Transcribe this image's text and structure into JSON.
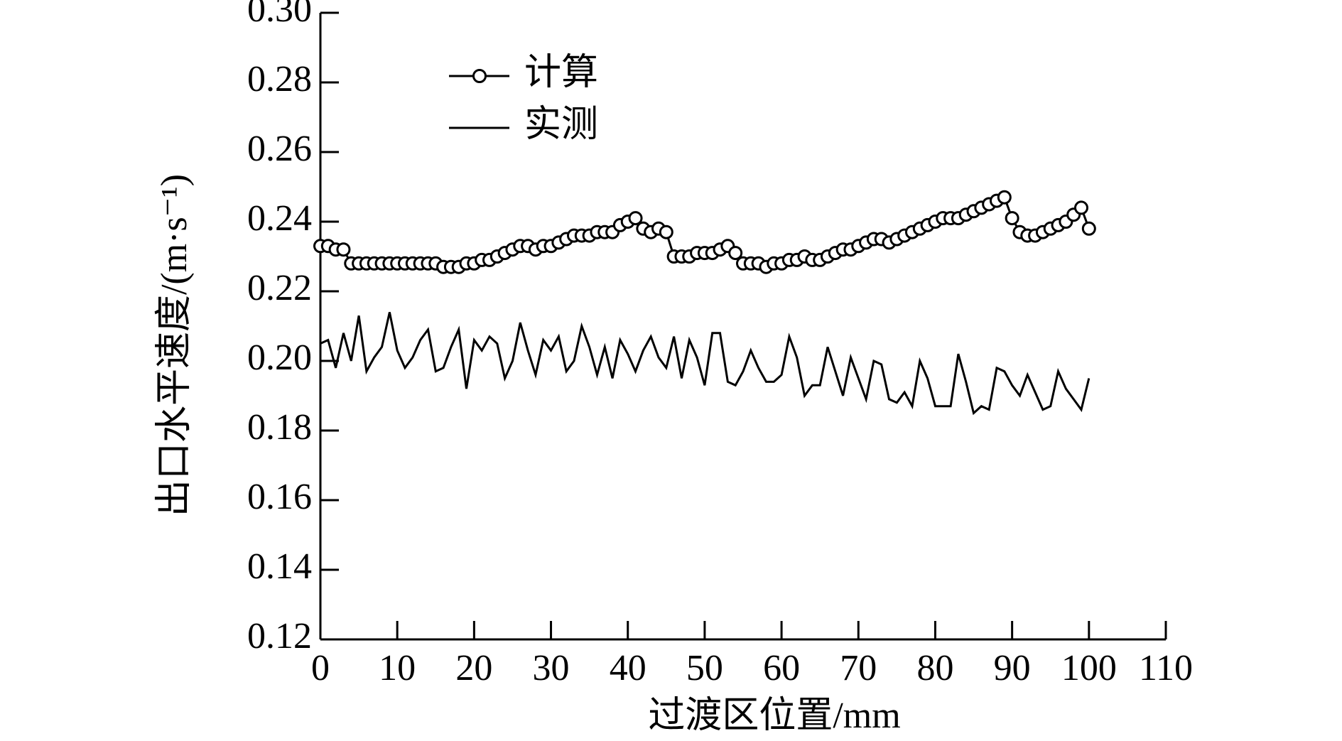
{
  "chart_data": {
    "type": "line",
    "xlabel": "过渡区位置/mm",
    "ylabel": "出口水平速度/(m·s⁻¹)",
    "x": [
      0,
      1,
      2,
      3,
      4,
      5,
      6,
      7,
      8,
      9,
      10,
      11,
      12,
      13,
      14,
      15,
      16,
      17,
      18,
      19,
      20,
      21,
      22,
      23,
      24,
      25,
      26,
      27,
      28,
      29,
      30,
      31,
      32,
      33,
      34,
      35,
      36,
      37,
      38,
      39,
      40,
      41,
      42,
      43,
      44,
      45,
      46,
      47,
      48,
      49,
      50,
      51,
      52,
      53,
      54,
      55,
      56,
      57,
      58,
      59,
      60,
      61,
      62,
      63,
      64,
      65,
      66,
      67,
      68,
      69,
      70,
      71,
      72,
      73,
      74,
      75,
      76,
      77,
      78,
      79,
      80,
      81,
      82,
      83,
      84,
      85,
      86,
      87,
      88,
      89,
      90,
      91,
      92,
      93,
      94,
      95,
      96,
      97,
      98,
      99,
      100
    ],
    "series": [
      {
        "name": "计算",
        "color": "#000000",
        "marker": "circle",
        "values": [
          0.233,
          0.233,
          0.232,
          0.232,
          0.228,
          0.228,
          0.228,
          0.228,
          0.228,
          0.228,
          0.228,
          0.228,
          0.228,
          0.228,
          0.228,
          0.228,
          0.227,
          0.227,
          0.227,
          0.228,
          0.228,
          0.229,
          0.229,
          0.23,
          0.231,
          0.232,
          0.233,
          0.233,
          0.232,
          0.233,
          0.233,
          0.234,
          0.235,
          0.236,
          0.236,
          0.236,
          0.237,
          0.237,
          0.237,
          0.239,
          0.24,
          0.241,
          0.238,
          0.237,
          0.238,
          0.237,
          0.23,
          0.23,
          0.23,
          0.231,
          0.231,
          0.231,
          0.232,
          0.233,
          0.231,
          0.228,
          0.228,
          0.228,
          0.227,
          0.228,
          0.228,
          0.229,
          0.229,
          0.23,
          0.229,
          0.229,
          0.23,
          0.231,
          0.232,
          0.232,
          0.233,
          0.234,
          0.235,
          0.235,
          0.234,
          0.235,
          0.236,
          0.237,
          0.238,
          0.239,
          0.24,
          0.241,
          0.241,
          0.241,
          0.242,
          0.243,
          0.244,
          0.245,
          0.246,
          0.247,
          0.241,
          0.237,
          0.236,
          0.236,
          0.237,
          0.238,
          0.239,
          0.24,
          0.242,
          0.244,
          0.238
        ]
      },
      {
        "name": "实测",
        "color": "#000000",
        "values": [
          0.205,
          0.206,
          0.198,
          0.208,
          0.2,
          0.213,
          0.197,
          0.201,
          0.204,
          0.214,
          0.203,
          0.198,
          0.201,
          0.206,
          0.209,
          0.197,
          0.198,
          0.204,
          0.209,
          0.192,
          0.206,
          0.203,
          0.207,
          0.205,
          0.195,
          0.2,
          0.211,
          0.203,
          0.196,
          0.206,
          0.203,
          0.207,
          0.197,
          0.2,
          0.21,
          0.204,
          0.196,
          0.204,
          0.195,
          0.206,
          0.202,
          0.197,
          0.203,
          0.207,
          0.201,
          0.198,
          0.207,
          0.195,
          0.206,
          0.201,
          0.193,
          0.208,
          0.208,
          0.194,
          0.193,
          0.197,
          0.203,
          0.198,
          0.194,
          0.194,
          0.196,
          0.207,
          0.201,
          0.19,
          0.193,
          0.193,
          0.204,
          0.197,
          0.19,
          0.201,
          0.195,
          0.189,
          0.2,
          0.199,
          0.189,
          0.188,
          0.191,
          0.187,
          0.2,
          0.195,
          0.187,
          0.187,
          0.187,
          0.202,
          0.194,
          0.185,
          0.187,
          0.186,
          0.198,
          0.197,
          0.193,
          0.19,
          0.196,
          0.191,
          0.186,
          0.187,
          0.197,
          0.192,
          0.189,
          0.186,
          0.195
        ]
      }
    ],
    "xlim": [
      0,
      110
    ],
    "xticks": [
      0,
      10,
      20,
      30,
      40,
      50,
      60,
      70,
      80,
      90,
      100,
      110
    ],
    "ylim": [
      0.12,
      0.3
    ],
    "yticks": [
      0.12,
      0.14,
      0.16,
      0.18,
      {
        "value": 0.2,
        "label": "0.20"
      },
      0.22,
      0.24,
      0.26,
      0.28,
      {
        "value": 0.3,
        "label": "0.30"
      }
    ],
    "legend": "upper left",
    "grid": false
  }
}
